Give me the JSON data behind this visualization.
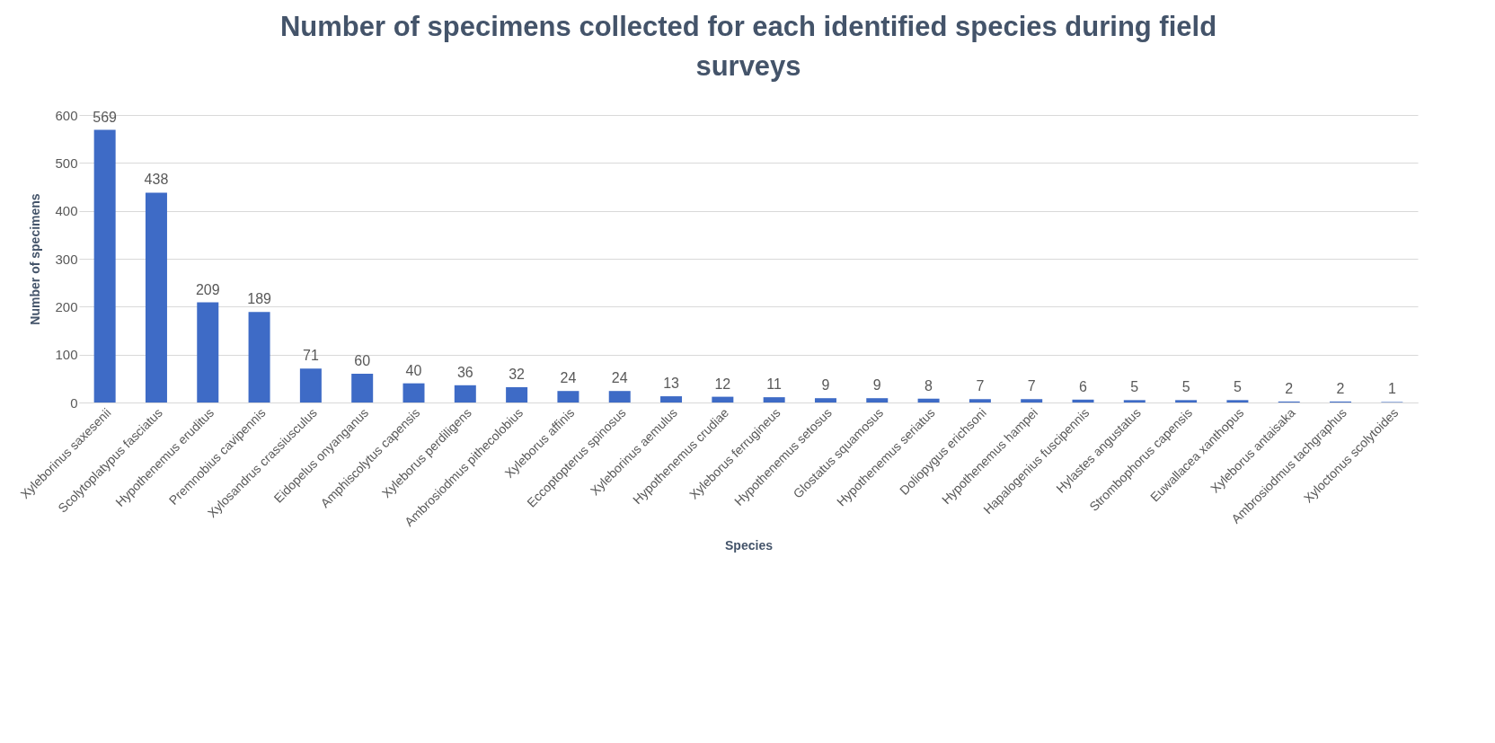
{
  "chart_data": {
    "type": "bar",
    "title": "Number of specimens collected for each identified species during field surveys",
    "xlabel": "Species",
    "ylabel": "Number of specimens",
    "categories": [
      "Xyleborinus saxesenii",
      "Scolytoplatypus fasciatus",
      "Hypothenemus eruditus",
      "Premnobius cavipennis",
      "Xylosandrus crassiusculus",
      "Eidopelus onyanganus",
      "Amphiscolytus capensis",
      "Xyleborus perdiligens",
      "Ambrosiodmus pithecolobius",
      "Xyleborus affinis",
      "Eccoptopterus spinosus",
      "Xyleborinus aemulus",
      "Hypothenemus crudiae",
      "Xyleborus ferrugineus",
      "Hypothenemus setosus",
      "Glostatus squamosus",
      "Hypothenemus seriatus",
      "Doliopygus erichsoni",
      "Hypothenemus hampei",
      "Hapalogenius fuscipennis",
      "Hylastes angustatus",
      "Strombophorus capensis",
      "Euwallacea xanthopus",
      "Xyleborus antaisaka",
      "Ambrosiodmus tachgraphus",
      "Xyloctonus scolytoides"
    ],
    "values": [
      569,
      438,
      209,
      189,
      71,
      60,
      40,
      36,
      32,
      24,
      24,
      13,
      12,
      11,
      9,
      9,
      8,
      7,
      7,
      6,
      5,
      5,
      5,
      2,
      2,
      1
    ],
    "color": "#3e6bc6",
    "ylim": [
      0,
      600
    ],
    "yticks": [
      0,
      100,
      200,
      300,
      400,
      500,
      600
    ],
    "grid": "y",
    "data_labels": true
  }
}
